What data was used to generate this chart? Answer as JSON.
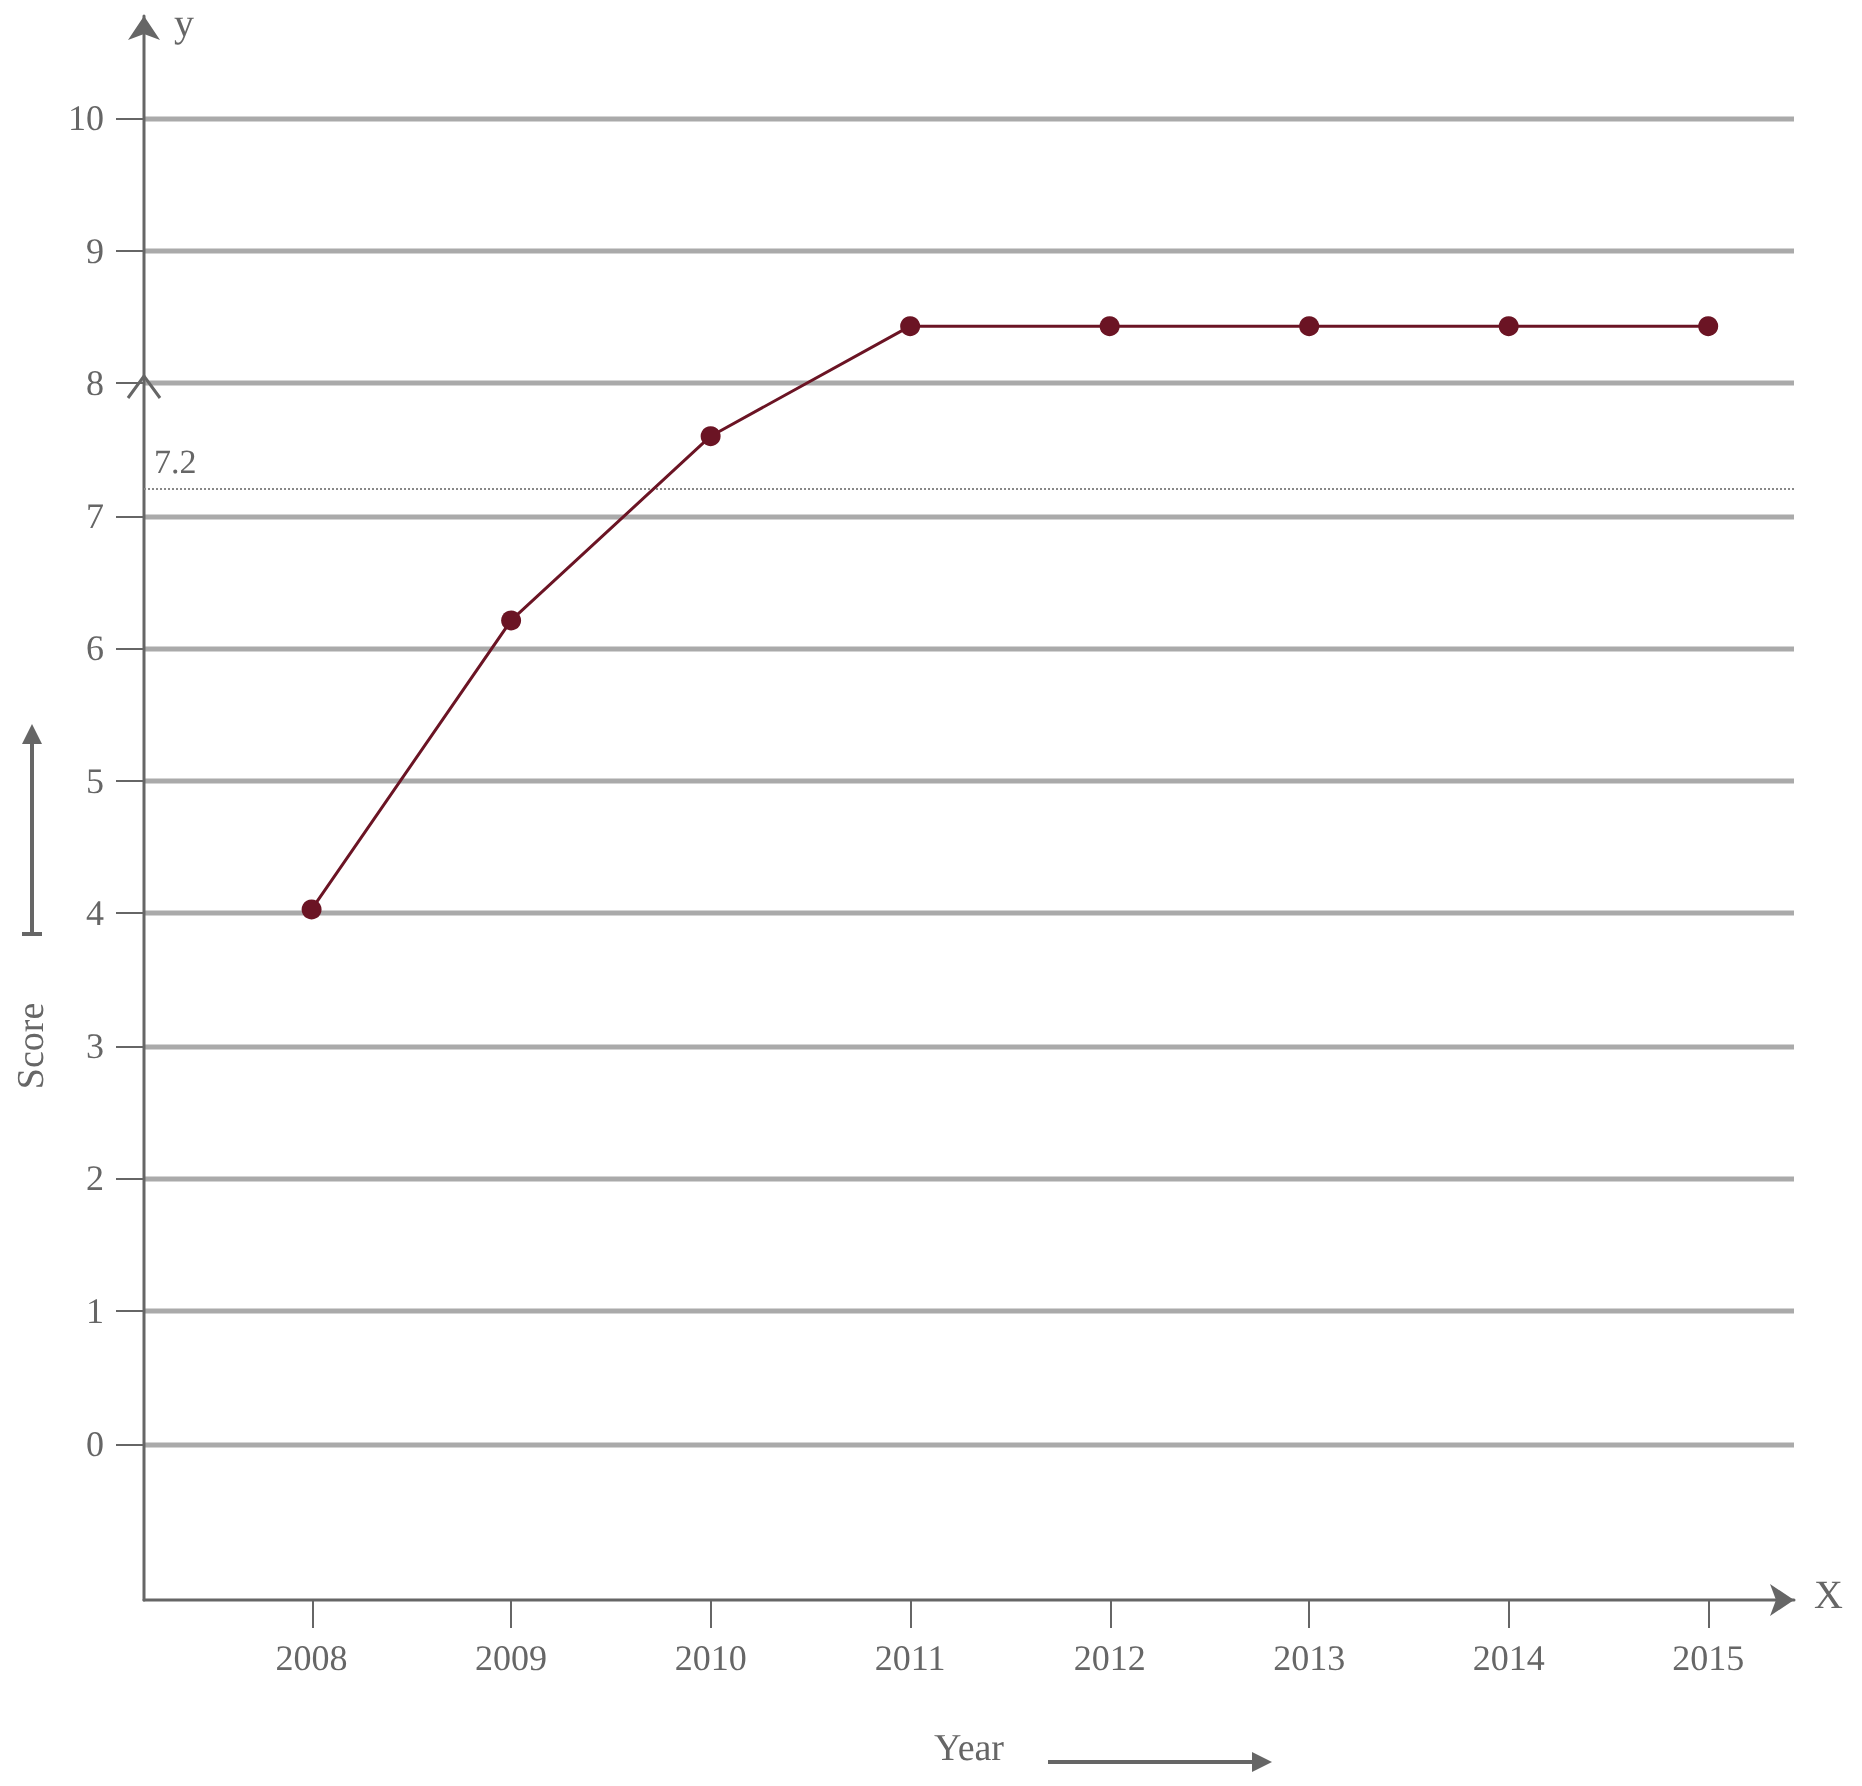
{
  "chart_data": {
    "type": "line",
    "xlabel": "Year",
    "ylabel": "Score",
    "annotations": [
      "y",
      "X"
    ],
    "x": [
      2008,
      2009,
      2010,
      2011,
      2012,
      2013,
      2014,
      2015
    ],
    "xlim": [
      2007.16,
      2015.43
    ],
    "xticks": [
      2008,
      2009,
      2010,
      2011,
      2012,
      2013,
      2014,
      2015
    ],
    "ylim": [
      -1.18,
      10.77
    ],
    "yticks": [
      0,
      1,
      2,
      3,
      4,
      5,
      6,
      7,
      8,
      9,
      10
    ],
    "series": [
      {
        "color": "#6b1424",
        "values": [
          4.03,
          6.21,
          7.6,
          8.43,
          8.43,
          8.43,
          8.43,
          8.43
        ]
      }
    ],
    "ref_lines": [
      {
        "axis": "y",
        "value": 7.2,
        "label": "7.2",
        "color": "#888888",
        "line_style": "dotted"
      }
    ],
    "grid": "y",
    "marker": "circle",
    "line_style": "solid"
  }
}
